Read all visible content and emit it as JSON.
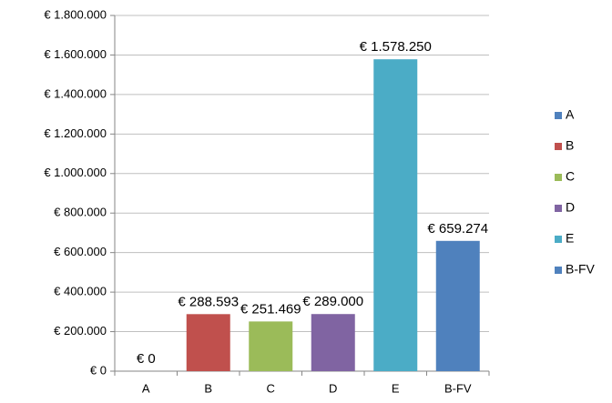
{
  "chart_data": {
    "type": "bar",
    "categories": [
      "A",
      "B",
      "C",
      "D",
      "E",
      "B-FV"
    ],
    "values": [
      0,
      288593,
      251469,
      289000,
      1578250,
      659274
    ],
    "value_labels": [
      "€ 0",
      "€ 288.593",
      "€ 251.469",
      "€ 289.000",
      "€ 1.578.250",
      "€ 659.274"
    ],
    "colors": [
      "#4f81bd",
      "#c0504d",
      "#9bbb59",
      "#8064a2",
      "#4bacc6",
      "#4f81bd"
    ],
    "ylim": [
      0,
      1800000
    ],
    "yticks": [
      {
        "value": 0,
        "label": "€ 0"
      },
      {
        "value": 200000,
        "label": "€ 200.000"
      },
      {
        "value": 400000,
        "label": "€ 400.000"
      },
      {
        "value": 600000,
        "label": "€ 600.000"
      },
      {
        "value": 800000,
        "label": "€ 800.000"
      },
      {
        "value": 1000000,
        "label": "€ 1.000.000"
      },
      {
        "value": 1200000,
        "label": "€ 1.200.000"
      },
      {
        "value": 1400000,
        "label": "€ 1.400.000"
      },
      {
        "value": 1600000,
        "label": "€ 1.600.000"
      },
      {
        "value": 1800000,
        "label": "€ 1.800.000"
      }
    ],
    "grid": true,
    "legend": "right"
  }
}
